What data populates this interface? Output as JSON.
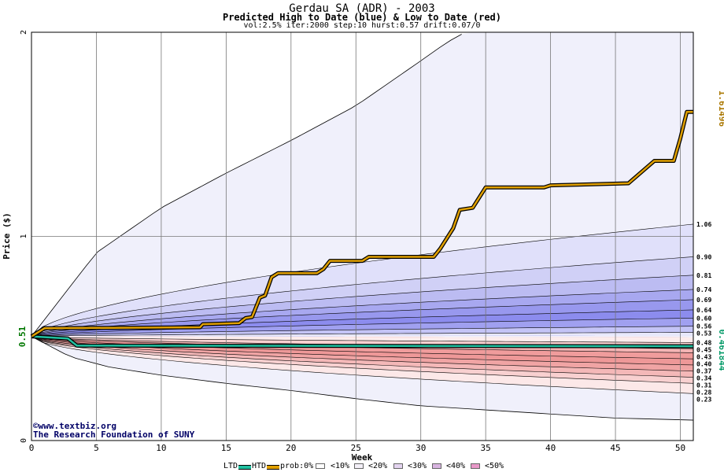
{
  "header": {
    "title": "Gerdau SA (ADR) - 2003",
    "subtitle": "Predicted High to Date (blue) &  Low to Date (red)",
    "params": "vol:2.5% iter:2000 step:10 hurst:0.57 drift:0.07/0"
  },
  "chart_data": {
    "type": "area",
    "xlabel": "Week",
    "ylabel": "Price ($)",
    "xlim": [
      0,
      51
    ],
    "ylim": [
      0,
      2
    ],
    "x_ticks": [
      "0",
      "5",
      "10",
      "15",
      "20",
      "25",
      "30",
      "35",
      "40",
      "45",
      "50"
    ],
    "y_ticks": [
      "0",
      "1",
      "2"
    ],
    "start_price": "0.51",
    "start_value": 0.51,
    "right_top_value": "1.61496",
    "right_bottom_value": "0.461844",
    "grid": true,
    "high_quantile_labels": [
      "1.06",
      "0.90",
      "0.81",
      "0.74",
      "0.69",
      "0.64",
      "0.60",
      "0.56",
      "0.53"
    ],
    "high_quantile_end_values": [
      1.06,
      0.9,
      0.81,
      0.74,
      0.69,
      0.64,
      0.6,
      0.56,
      0.53
    ],
    "low_quantile_labels": [
      "0.48",
      "0.45",
      "0.43",
      "0.40",
      "0.37",
      "0.34",
      "0.31",
      "0.28",
      "0.23"
    ],
    "low_quantile_end_values": [
      0.48,
      0.45,
      0.43,
      0.4,
      0.37,
      0.34,
      0.31,
      0.28,
      0.23
    ],
    "upper_envelope": {
      "name": "max",
      "x": [
        0,
        5,
        10,
        15,
        20,
        25,
        30,
        32,
        34
      ],
      "y": [
        0.51,
        0.92,
        1.14,
        1.31,
        1.47,
        1.64,
        1.86,
        1.95,
        2.02
      ]
    },
    "lower_envelope": {
      "name": "min",
      "x": [
        0,
        3,
        6,
        10,
        15,
        20,
        25,
        30,
        35,
        40,
        45,
        51
      ],
      "y": [
        0.51,
        0.41,
        0.36,
        0.32,
        0.28,
        0.245,
        0.205,
        0.17,
        0.15,
        0.13,
        0.11,
        0.1
      ]
    },
    "htd_series": {
      "name": "HTD",
      "x": [
        0,
        1,
        13,
        13.2,
        16,
        16.5,
        17,
        17.6,
        18,
        18.5,
        19,
        22,
        22.5,
        23,
        25.5,
        26,
        31,
        31.5,
        32.5,
        33,
        34,
        35,
        39.5,
        40,
        46,
        48,
        49.5,
        50,
        50.5,
        51
      ],
      "y": [
        0.51,
        0.55,
        0.555,
        0.57,
        0.575,
        0.6,
        0.605,
        0.7,
        0.71,
        0.8,
        0.82,
        0.82,
        0.84,
        0.88,
        0.88,
        0.9,
        0.9,
        0.94,
        1.04,
        1.13,
        1.14,
        1.24,
        1.24,
        1.25,
        1.26,
        1.37,
        1.37,
        1.48,
        1.61,
        1.61
      ]
    },
    "ltd_series": {
      "name": "LTD",
      "x": [
        0,
        2.8,
        3.5,
        51
      ],
      "y": [
        0.51,
        0.5,
        0.465,
        0.462
      ]
    }
  },
  "watermark": {
    "line1": "©www.textbiz.org",
    "line2": "The Research Foundation of SUNY"
  },
  "legend": {
    "ltd": "LTD",
    "htd": "HTD",
    "prob": "prob:0%",
    "p10": "<10%",
    "p20": "<20%",
    "p30": "<30%",
    "p40": "<40%",
    "p50": "<50%",
    "colors": {
      "ltd": "#20c0a0",
      "htd": "#e0a000",
      "p0": "#ffffff",
      "p10": "#f4f0f8",
      "p20": "#e4d4f0",
      "p30": "#d8b4e0",
      "p40": "#e898c8",
      "p50": "#9070f0"
    }
  }
}
